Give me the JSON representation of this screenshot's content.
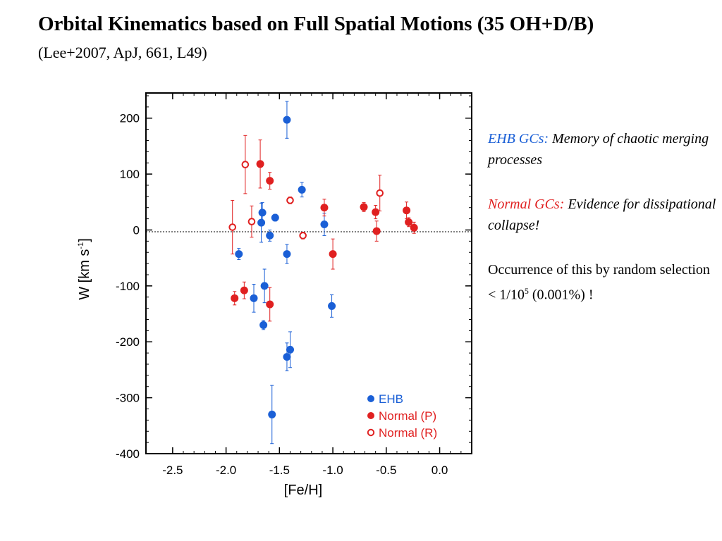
{
  "slide": {
    "title": "Orbital Kinematics based on Full Spatial Motions (35 OH+D/B)",
    "subtitle": "(Lee+2007, ApJ, 661, L49)",
    "notes": {
      "ehb_label": "EHB GCs:",
      "ehb_text": "Memory of chaotic merging processes",
      "normal_label": "Normal GCs:",
      "normal_text": "Evidence for dissipational collapse!",
      "occurrence_pre": "Occurrence of this by random selection < 1/10",
      "occurrence_sup": "5",
      "occurrence_post": " (0.001%) !"
    },
    "colors": {
      "ehb": "#1a5fd6",
      "normal": "#e02020",
      "text": "#000000"
    }
  },
  "chart_data": {
    "type": "scatter",
    "xlabel": "[Fe/H]",
    "ylabel": "W [km s",
    "ylabel_sup": "-1",
    "ylabel_end": "]",
    "xlim": [
      -2.75,
      0.3
    ],
    "ylim": [
      -400,
      245
    ],
    "xticks": [
      -2.5,
      -2.0,
      -1.5,
      -1.0,
      -0.5,
      0.0
    ],
    "xtick_labels": [
      "-2.5",
      "-2.0",
      "-1.5",
      "-1.0",
      "-0.5",
      "0.0"
    ],
    "yticks": [
      200,
      100,
      0,
      -100,
      -200,
      -300,
      -400
    ],
    "ytick_labels": [
      "200",
      "100",
      "0",
      "-100",
      "-200",
      "-300",
      "-400"
    ],
    "zero_line": "dotted",
    "legend_position": "bottom-right",
    "series": [
      {
        "name": "EHB",
        "marker": "filled",
        "color": "#1a5fd6",
        "points": [
          {
            "x": -1.43,
            "y": 197,
            "err": 33
          },
          {
            "x": -1.29,
            "y": 72,
            "err": 13
          },
          {
            "x": -1.66,
            "y": 31,
            "err": 18
          },
          {
            "x": -1.54,
            "y": 22,
            "err": 6
          },
          {
            "x": -1.67,
            "y": 13,
            "err": 35
          },
          {
            "x": -1.59,
            "y": -10,
            "err": 10
          },
          {
            "x": -1.08,
            "y": 10,
            "err": 20
          },
          {
            "x": -1.88,
            "y": -43,
            "err": 10
          },
          {
            "x": -1.43,
            "y": -43,
            "err": 17
          },
          {
            "x": -1.64,
            "y": -100,
            "err": 30
          },
          {
            "x": -1.74,
            "y": -122,
            "err": 25
          },
          {
            "x": -1.01,
            "y": -136,
            "err": 20
          },
          {
            "x": -1.65,
            "y": -170,
            "err": 8
          },
          {
            "x": -1.4,
            "y": -214,
            "err": 32
          },
          {
            "x": -1.43,
            "y": -227,
            "err": 25
          },
          {
            "x": -1.57,
            "y": -330,
            "err": 52
          }
        ]
      },
      {
        "name": "Normal (P)",
        "marker": "filled",
        "color": "#e02020",
        "points": [
          {
            "x": -1.68,
            "y": 118,
            "err": 43
          },
          {
            "x": -1.59,
            "y": 88,
            "err": 15
          },
          {
            "x": -1.08,
            "y": 40,
            "err": 15
          },
          {
            "x": -0.71,
            "y": 41,
            "err": 8
          },
          {
            "x": -0.6,
            "y": 32,
            "err": 12
          },
          {
            "x": -0.31,
            "y": 35,
            "err": 15
          },
          {
            "x": -0.29,
            "y": 14,
            "err": 8
          },
          {
            "x": -0.24,
            "y": 4,
            "err": 10
          },
          {
            "x": -0.59,
            "y": -2,
            "err": 18
          },
          {
            "x": -1.0,
            "y": -43,
            "err": 27
          },
          {
            "x": -1.83,
            "y": -108,
            "err": 15
          },
          {
            "x": -1.92,
            "y": -122,
            "err": 12
          },
          {
            "x": -1.59,
            "y": -133,
            "err": 30
          }
        ]
      },
      {
        "name": "Normal (R)",
        "marker": "open",
        "color": "#e02020",
        "points": [
          {
            "x": -1.82,
            "y": 117,
            "err": 52
          },
          {
            "x": -1.4,
            "y": 53,
            "err": 6
          },
          {
            "x": -0.56,
            "y": 66,
            "err": 32
          },
          {
            "x": -1.76,
            "y": 15,
            "err": 28
          },
          {
            "x": -1.94,
            "y": 5,
            "err": 48
          },
          {
            "x": -1.28,
            "y": -10,
            "err": 6
          }
        ]
      }
    ]
  }
}
